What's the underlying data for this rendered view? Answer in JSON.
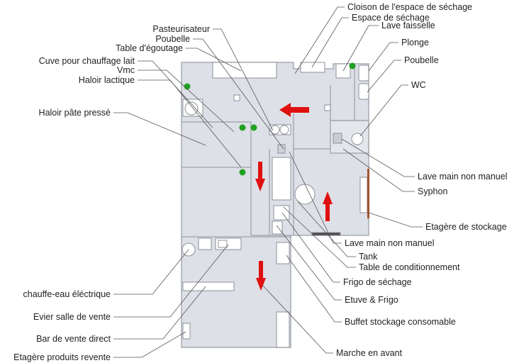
{
  "labels": {
    "left": {
      "cuve_chauffage_lait": "Cuve pour chauffage lait",
      "vmc": "Vmc",
      "haloir_lactique": "Haloir lactique",
      "haloir_pate_presse": "Haloir pâte pressé",
      "chauffe_eau": "chauffe-eau éléctrique",
      "evier_salle_vente": "Evier salle de vente",
      "bar_vente_direct": "Bar de vente direct",
      "etagere_produits_revente": "Etagère produits revente"
    },
    "top": {
      "pasteurisateur": "Pasteurisateur",
      "poubelle": "Poubelle",
      "table_egouttage": "Table d'égoutage",
      "cloison_espace_sechage": "Cloison de l'espace de séchage",
      "espace_sechage": "Espace de séchage",
      "lave_faisselle": "Lave faisselle",
      "plonge": "Plonge",
      "poubelle_2": "Poubelle",
      "wc": "WC"
    },
    "right": {
      "lave_main_non_manuel": "Lave main non manuel",
      "syphon": "Syphon",
      "etagere_stockage": "Etagère de stockage",
      "lave_main_non_manuel_2": "Lave main non manuel",
      "tank": "Tank",
      "table_conditionnement": "Table de conditionnement",
      "frigo_sechage": "Frigo de séchage",
      "etuve_frigo": "Etuve & Frigo",
      "buffet_stockage": "Buffet stockage consomable",
      "marche_en_avant": "Marche en avant"
    }
  },
  "colors": {
    "room_fill": "#dde0e6",
    "wall": "#b8bcc4",
    "leader": "#555555",
    "arrow": "#e01010",
    "vmc_dot": "#22a022",
    "shelf": "#a0522d"
  }
}
